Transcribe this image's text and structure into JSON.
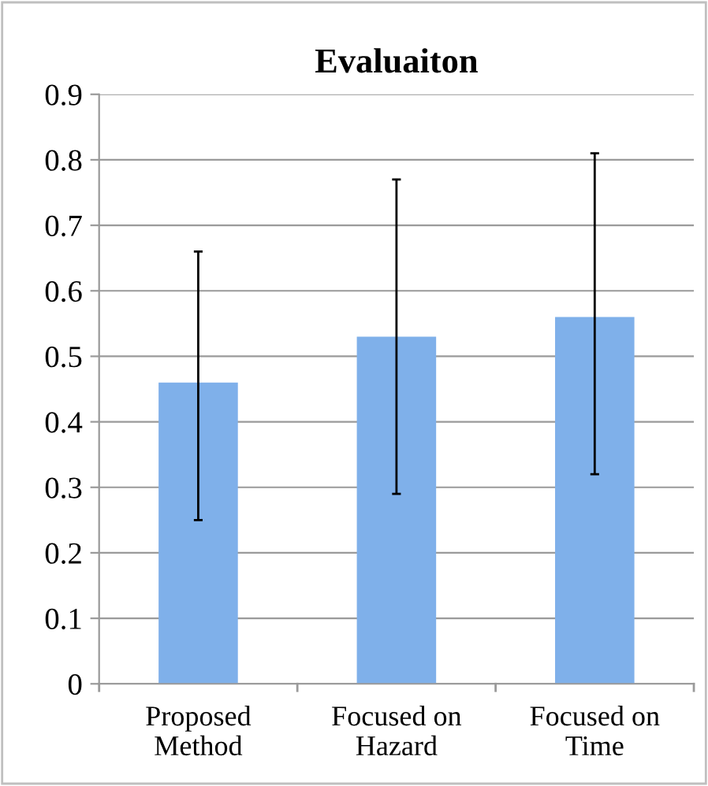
{
  "chart_data": {
    "type": "bar",
    "title": "Evaluaiton",
    "categories": [
      "Proposed\nMethod",
      "Focused on\nHazard",
      "Focused on\nTime"
    ],
    "values": [
      0.46,
      0.53,
      0.56
    ],
    "errors": [
      [
        0.25,
        0.66
      ],
      [
        0.29,
        0.77
      ],
      [
        0.32,
        0.81
      ]
    ],
    "color": "#7fb0ea",
    "ylim": [
      0,
      0.9
    ],
    "yticks": [
      0,
      0.1,
      0.2,
      0.3,
      0.4,
      0.5,
      0.6,
      0.7,
      0.8,
      0.9
    ],
    "grid": "y"
  }
}
